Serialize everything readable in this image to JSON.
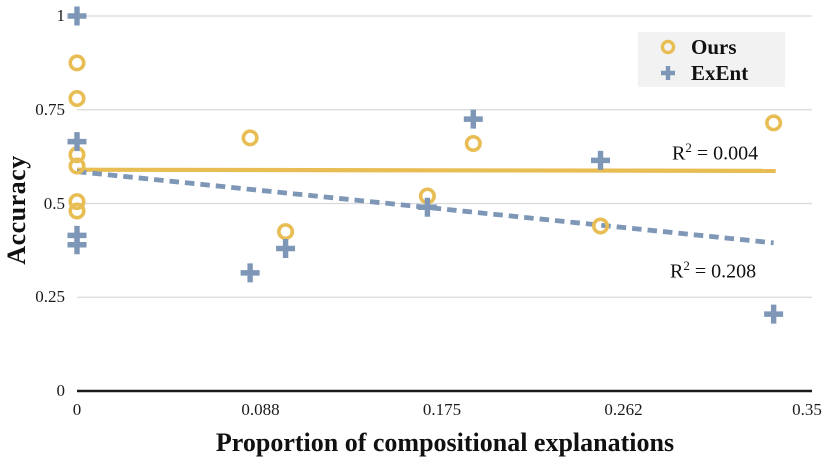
{
  "chart_data": {
    "type": "scatter",
    "title": "",
    "xlabel": "Proportion of compositional explanations",
    "ylabel": "Accuracy",
    "xlim": [
      0,
      0.35
    ],
    "ylim": [
      0,
      1
    ],
    "grid": "horizontal",
    "x_ticks": {
      "labels": [
        "0",
        "0.088",
        "0.175",
        "0.262",
        "0.35"
      ],
      "values": [
        0,
        0.088,
        0.175,
        0.262,
        0.35
      ]
    },
    "y_ticks": {
      "labels": [
        "1",
        "0.75",
        "0.5",
        "0.25",
        "0"
      ],
      "values": [
        1,
        0.75,
        0.5,
        0.25,
        0
      ]
    },
    "colors": {
      "ours": "#E8BE54",
      "exent": "#7E97B7",
      "gridline": "#DADADA",
      "axis": "#1A1A1A",
      "legend_bg": "#F2F2F2"
    },
    "series": [
      {
        "name": "Ours",
        "marker": "circle",
        "color": "#E8BE54",
        "points": [
          [
            0,
            0.875
          ],
          [
            0,
            0.78
          ],
          [
            0,
            0.63
          ],
          [
            0,
            0.6
          ],
          [
            0,
            0.505
          ],
          [
            0,
            0.48
          ],
          [
            0.083,
            0.675
          ],
          [
            0.1,
            0.425
          ],
          [
            0.168,
            0.52
          ],
          [
            0.19,
            0.66
          ],
          [
            0.251,
            0.44
          ],
          [
            0.334,
            0.715
          ]
        ]
      },
      {
        "name": "ExEnt",
        "marker": "plus",
        "color": "#7E97B7",
        "points": [
          [
            0,
            1.0
          ],
          [
            0,
            0.665
          ],
          [
            0,
            0.415
          ],
          [
            0,
            0.39
          ],
          [
            0.083,
            0.315
          ],
          [
            0.1,
            0.38
          ],
          [
            0.168,
            0.49
          ],
          [
            0.19,
            0.725
          ],
          [
            0.251,
            0.615
          ],
          [
            0.334,
            0.205
          ]
        ]
      }
    ],
    "trendlines": [
      {
        "series": "Ours",
        "style": "solid",
        "color": "#E8BE54",
        "x1": 0,
        "y1": 0.59,
        "x2": 0.335,
        "y2": 0.587,
        "r2": {
          "prefix": "R",
          "sup": "2",
          "suffix": " = 0.004"
        }
      },
      {
        "series": "ExEnt",
        "style": "dashed",
        "color": "#7E97B7",
        "x1": 0,
        "y1": 0.585,
        "x2": 0.334,
        "y2": 0.395,
        "r2": {
          "prefix": "R",
          "sup": "2",
          "suffix": " = 0.208"
        }
      }
    ],
    "legend": {
      "position": "top-right",
      "items": [
        {
          "label": "Ours",
          "marker": "circle",
          "color": "#E8BE54"
        },
        {
          "label": "ExEnt",
          "marker": "plus",
          "color": "#7E97B7"
        }
      ]
    }
  }
}
